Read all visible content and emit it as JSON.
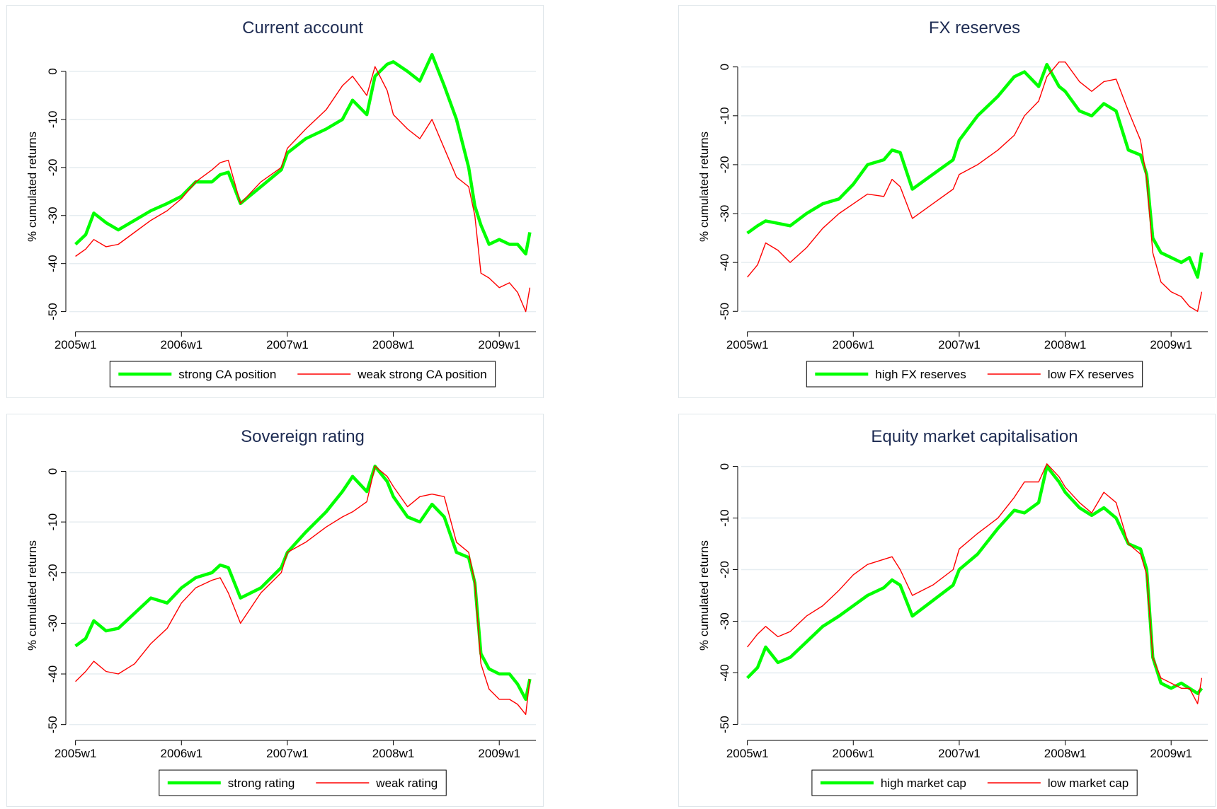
{
  "chart_data": [
    {
      "type": "line",
      "title": "Current account",
      "y_label": "% cumulated returns",
      "x": [
        "2005w1",
        "2005w6",
        "2005w10",
        "2005w16",
        "2005w22",
        "2005w30",
        "2005w38",
        "2005w46",
        "2006w1",
        "2006w8",
        "2006w16",
        "2006w20",
        "2006w24",
        "2006w30",
        "2006w40",
        "2006w50",
        "2007w1",
        "2007w10",
        "2007w20",
        "2007w28",
        "2007w33",
        "2007w40",
        "2007w44",
        "2007w50",
        "2008w1",
        "2008w8",
        "2008w14",
        "2008w20",
        "2008w26",
        "2008w32",
        "2008w38",
        "2008w41",
        "2008w44",
        "2008w48",
        "2009w1",
        "2009w6",
        "2009w10",
        "2009w14",
        "2009w16"
      ],
      "xlim": [
        "2004w50",
        "2009w19"
      ],
      "xticks": [
        "2005w1",
        "2006w1",
        "2007w1",
        "2008w1",
        "2009w1"
      ],
      "ylim": [
        -53,
        5
      ],
      "yticks": [
        0,
        -10,
        -20,
        -30,
        -40,
        -50
      ],
      "grid": true,
      "series": [
        {
          "name": "strong CA position",
          "color": "#00ff00",
          "values": [
            -36,
            -34,
            -29.5,
            -31.5,
            -33,
            -31,
            -29,
            -27.5,
            -26,
            -23,
            -23,
            -21.5,
            -21,
            -27.5,
            -24,
            -20.5,
            -17,
            -14,
            -12,
            -10,
            -6,
            -9,
            -1,
            1.5,
            2,
            0,
            -2,
            3.5,
            -3,
            -10,
            -20,
            -28,
            -32,
            -36,
            -35,
            -36,
            -36,
            -38,
            -33.5
          ]
        },
        {
          "name": "weak strong CA position",
          "color": "#ff0000",
          "values": [
            -38.5,
            -37,
            -35,
            -36.5,
            -36,
            -33.5,
            -31,
            -29,
            -26.5,
            -23,
            -20.5,
            -19,
            -18.5,
            -27.5,
            -23,
            -20,
            -16,
            -12,
            -8,
            -3,
            -1,
            -5,
            1,
            -4,
            -9,
            -12,
            -14,
            -10,
            -16,
            -22,
            -24,
            -30,
            -42,
            -43,
            -45,
            -44,
            -46,
            -50,
            -45
          ]
        }
      ]
    },
    {
      "type": "line",
      "title": "FX reserves",
      "y_label": "% cumulated returns",
      "x": [
        "2005w1",
        "2005w6",
        "2005w10",
        "2005w16",
        "2005w22",
        "2005w30",
        "2005w38",
        "2005w46",
        "2006w1",
        "2006w8",
        "2006w16",
        "2006w20",
        "2006w24",
        "2006w30",
        "2006w40",
        "2006w50",
        "2007w1",
        "2007w10",
        "2007w20",
        "2007w28",
        "2007w33",
        "2007w40",
        "2007w44",
        "2007w50",
        "2008w1",
        "2008w8",
        "2008w14",
        "2008w20",
        "2008w26",
        "2008w32",
        "2008w38",
        "2008w41",
        "2008w44",
        "2008w48",
        "2009w1",
        "2009w6",
        "2009w10",
        "2009w14",
        "2009w16"
      ],
      "xlim": [
        "2004w50",
        "2009w19"
      ],
      "xticks": [
        "2005w1",
        "2006w1",
        "2007w1",
        "2008w1",
        "2009w1"
      ],
      "ylim": [
        -53,
        4
      ],
      "yticks": [
        0,
        -10,
        -20,
        -30,
        -40,
        -50
      ],
      "grid": true,
      "series": [
        {
          "name": "high FX reserves",
          "color": "#00ff00",
          "values": [
            -34,
            -32.5,
            -31.5,
            -32,
            -32.5,
            -30,
            -28,
            -27,
            -24,
            -20,
            -19,
            -17,
            -17.5,
            -25,
            -22,
            -19,
            -15,
            -10,
            -6,
            -2,
            -1,
            -4,
            0.5,
            -4,
            -5,
            -9,
            -10,
            -7.5,
            -9,
            -17,
            -18,
            -22,
            -35,
            -38,
            -39,
            -40,
            -39,
            -43,
            -38
          ]
        },
        {
          "name": "low FX reserves",
          "color": "#ff0000",
          "values": [
            -43,
            -40.5,
            -36,
            -37.5,
            -40,
            -37,
            -33,
            -30,
            -28,
            -26,
            -26.5,
            -23,
            -24.5,
            -31,
            -28,
            -25,
            -22,
            -20,
            -17,
            -14,
            -10,
            -7,
            -2,
            1,
            1,
            -3,
            -5,
            -3,
            -2.5,
            -9,
            -15,
            -23,
            -38,
            -44,
            -46,
            -47,
            -49,
            -50,
            -46
          ]
        }
      ]
    },
    {
      "type": "line",
      "title": "Sovereign rating",
      "y_label": "% cumulated returns",
      "x": [
        "2005w1",
        "2005w6",
        "2005w10",
        "2005w16",
        "2005w22",
        "2005w30",
        "2005w38",
        "2005w46",
        "2006w1",
        "2006w8",
        "2006w16",
        "2006w20",
        "2006w24",
        "2006w30",
        "2006w40",
        "2006w50",
        "2007w1",
        "2007w10",
        "2007w20",
        "2007w28",
        "2007w33",
        "2007w40",
        "2007w44",
        "2007w50",
        "2008w1",
        "2008w8",
        "2008w14",
        "2008w20",
        "2008w26",
        "2008w32",
        "2008w38",
        "2008w41",
        "2008w44",
        "2008w48",
        "2009w1",
        "2009w6",
        "2009w10",
        "2009w14",
        "2009w16"
      ],
      "xlim": [
        "2004w50",
        "2009w19"
      ],
      "xticks": [
        "2005w1",
        "2006w1",
        "2007w1",
        "2008w1",
        "2009w1"
      ],
      "ylim": [
        -52,
        3
      ],
      "yticks": [
        0,
        -10,
        -20,
        -30,
        -40,
        -50
      ],
      "grid": true,
      "series": [
        {
          "name": "strong rating",
          "color": "#00ff00",
          "values": [
            -34.5,
            -33,
            -29.5,
            -31.5,
            -31,
            -28,
            -25,
            -26,
            -23,
            -21,
            -20,
            -18.5,
            -19,
            -25,
            -23,
            -19,
            -16,
            -12,
            -8,
            -4,
            -1,
            -4,
            1,
            -2,
            -5,
            -9,
            -10,
            -6.5,
            -9,
            -16,
            -17,
            -22,
            -36,
            -39,
            -40,
            -40,
            -42,
            -45,
            -41
          ]
        },
        {
          "name": "weak rating",
          "color": "#ff0000",
          "values": [
            -41.5,
            -39.5,
            -37.5,
            -39.5,
            -40,
            -38,
            -34,
            -31,
            -26,
            -23,
            -21.5,
            -21,
            -24,
            -30,
            -24,
            -20,
            -16,
            -14,
            -11,
            -9,
            -8,
            -6,
            1,
            -1,
            -3,
            -7,
            -5,
            -4.5,
            -5,
            -14,
            -16,
            -22,
            -38,
            -43,
            -45,
            -45,
            -46,
            -48,
            -41
          ]
        }
      ]
    },
    {
      "type": "line",
      "title": "Equity market capitalisation",
      "y_label": "% cumulated returns",
      "x": [
        "2005w1",
        "2005w6",
        "2005w10",
        "2005w16",
        "2005w22",
        "2005w30",
        "2005w38",
        "2005w46",
        "2006w1",
        "2006w8",
        "2006w16",
        "2006w20",
        "2006w24",
        "2006w30",
        "2006w40",
        "2006w50",
        "2007w1",
        "2007w10",
        "2007w20",
        "2007w28",
        "2007w33",
        "2007w40",
        "2007w44",
        "2007w50",
        "2008w1",
        "2008w8",
        "2008w14",
        "2008w20",
        "2008w26",
        "2008w32",
        "2008w38",
        "2008w41",
        "2008w44",
        "2008w48",
        "2009w1",
        "2009w6",
        "2009w10",
        "2009w14",
        "2009w16"
      ],
      "xlim": [
        "2004w50",
        "2009w19"
      ],
      "xticks": [
        "2005w1",
        "2006w1",
        "2007w1",
        "2008w1",
        "2009w1"
      ],
      "ylim": [
        -52,
        2
      ],
      "yticks": [
        0,
        -10,
        -20,
        -30,
        -40,
        -50
      ],
      "grid": true,
      "series": [
        {
          "name": "high market cap",
          "color": "#00ff00",
          "values": [
            -41,
            -39,
            -35,
            -38,
            -37,
            -34,
            -31,
            -29,
            -27,
            -25,
            -23.5,
            -22,
            -23,
            -29,
            -26,
            -23,
            -20,
            -17,
            -12,
            -8.5,
            -9,
            -7,
            0,
            -3,
            -5,
            -8,
            -9.5,
            -8,
            -10,
            -15,
            -16,
            -20,
            -37,
            -42,
            -43,
            -42,
            -43,
            -44,
            -43
          ]
        },
        {
          "name": "low market cap",
          "color": "#ff0000",
          "values": [
            -35,
            -32.5,
            -31,
            -33,
            -32,
            -29,
            -27,
            -24,
            -21,
            -19,
            -18,
            -17.5,
            -20,
            -25,
            -23,
            -20,
            -16,
            -13,
            -10,
            -6,
            -3,
            -3,
            0.5,
            -2,
            -4,
            -7,
            -9,
            -5,
            -7,
            -15,
            -17,
            -21,
            -37,
            -41,
            -42,
            -43,
            -43,
            -46,
            -41
          ]
        }
      ]
    }
  ]
}
